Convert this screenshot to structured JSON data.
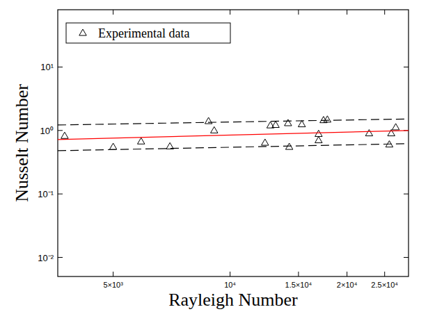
{
  "chart_data": {
    "type": "scatter",
    "xlabel": "Rayleigh Number",
    "ylabel": "Nusselt Number",
    "log": true,
    "grid": false,
    "legend": "upper left",
    "xlim": [
      3600,
      28800
    ],
    "ylim": [
      0.005,
      80
    ],
    "xticks": [
      {
        "value": 5000,
        "label": "5×10³"
      },
      {
        "value": 10000,
        "label": "10⁴"
      },
      {
        "value": 15000,
        "label": "1.5×10⁴"
      },
      {
        "value": 20000,
        "label": "2×10⁴"
      },
      {
        "value": 25000,
        "label": "2.5×10⁴"
      }
    ],
    "yticks": [
      {
        "value": 0.01,
        "label": "10⁻²"
      },
      {
        "value": 0.1,
        "label": "10⁻¹"
      },
      {
        "value": 1,
        "label": "10⁰"
      },
      {
        "value": 10,
        "label": "10¹"
      }
    ],
    "series": [
      {
        "name": "Experimental data",
        "type": "scatter",
        "marker": "triangle",
        "color": "#000000",
        "x": [
          3750,
          5000,
          5900,
          7000,
          8800,
          9100,
          12300,
          12700,
          13100,
          14100,
          14200,
          15300,
          16900,
          16900,
          17400,
          17800,
          22800,
          25700,
          26000,
          26700
        ],
        "values": [
          0.82,
          0.55,
          0.67,
          0.56,
          1.4,
          1.0,
          0.64,
          1.2,
          1.22,
          1.3,
          0.55,
          1.25,
          0.88,
          0.7,
          1.45,
          1.48,
          0.9,
          0.6,
          0.9,
          1.12
        ]
      },
      {
        "type": "line",
        "line_style": "solid",
        "color": "#ff0000",
        "x": [
          3600,
          28800
        ],
        "values": [
          0.72,
          1.0
        ]
      },
      {
        "type": "line",
        "line_style": "dashed",
        "color": "#000000",
        "x": [
          3600,
          28800
        ],
        "values": [
          1.22,
          1.52
        ]
      },
      {
        "type": "line",
        "line_style": "dashed",
        "color": "#000000",
        "x": [
          3600,
          28800
        ],
        "values": [
          0.48,
          0.62
        ]
      }
    ]
  }
}
